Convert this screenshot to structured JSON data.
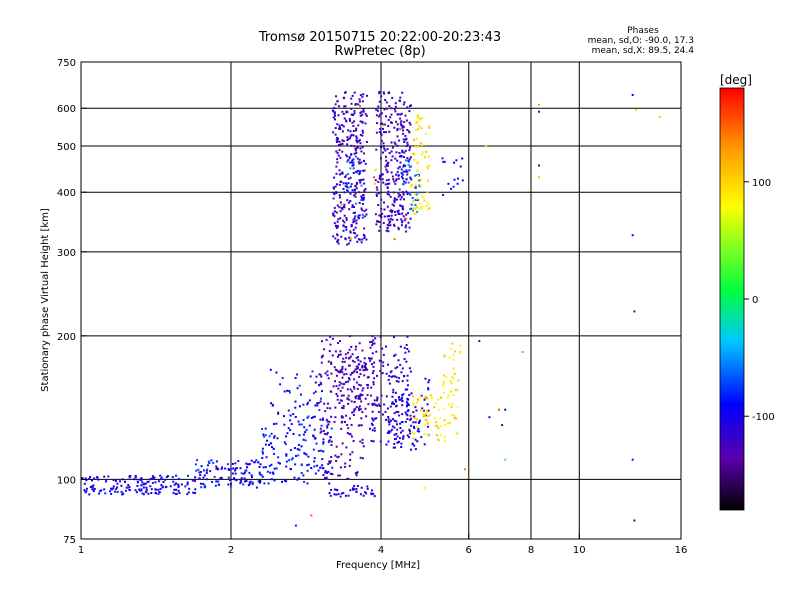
{
  "chart_data": {
    "type": "scatter",
    "title": "Tromsø 20150715 20:22:00-20:23:43",
    "subtitle": "RwPretec (8p)",
    "xlabel": "Frequency [MHz]",
    "ylabel": "Stationary phase Virtual Height [km]",
    "x_scale": "log",
    "y_scale": "log",
    "xlim": [
      1,
      16
    ],
    "ylim": [
      75,
      750
    ],
    "grid": true,
    "x_ticks": [
      "1",
      "2",
      "4",
      "6",
      "8",
      "10",
      "16"
    ],
    "y_ticks": [
      "75",
      "100",
      "200",
      "300",
      "400",
      "500",
      "600",
      "750"
    ],
    "x_grid": [
      2,
      4,
      6,
      8,
      10
    ],
    "y_grid": [
      100,
      200,
      300,
      400,
      500,
      600
    ],
    "colorbar": {
      "label": "[deg]",
      "range": [
        -180,
        180
      ],
      "ticks": [
        "100",
        "0",
        "-100"
      ],
      "tick_values": [
        100,
        0,
        -100
      ]
    },
    "annotation": {
      "title": "Phases",
      "line_o": "mean, sd,O: -90.0, 17.3",
      "line_x": "mean, sd,X:  89.5, 24.4"
    },
    "clusters": [
      {
        "f": [
          1.0,
          1.7
        ],
        "h": [
          93,
          102
        ],
        "phase": [
          -120,
          -80
        ],
        "n": 160
      },
      {
        "f": [
          1.7,
          2.3
        ],
        "h": [
          96,
          110
        ],
        "phase": [
          -120,
          -70
        ],
        "n": 110
      },
      {
        "f": [
          2.3,
          3.2
        ],
        "h": [
          98,
          130
        ],
        "phase": [
          -110,
          -70
        ],
        "n": 140
      },
      {
        "f": [
          2.4,
          3.1
        ],
        "h": [
          130,
          170
        ],
        "phase": [
          -110,
          -65
        ],
        "n": 60
      },
      {
        "f": [
          3.0,
          3.7
        ],
        "h": [
          100,
          200
        ],
        "phase": [
          -140,
          -115
        ],
        "n": 180
      },
      {
        "f": [
          3.3,
          3.9
        ],
        "h": [
          130,
          180
        ],
        "phase": [
          -140,
          -110
        ],
        "n": 110
      },
      {
        "f": [
          3.8,
          4.6
        ],
        "h": [
          120,
          200
        ],
        "phase": [
          -130,
          -100
        ],
        "n": 140
      },
      {
        "f": [
          4.1,
          5.0
        ],
        "h": [
          115,
          165
        ],
        "phase": [
          -115,
          -85
        ],
        "n": 90
      },
      {
        "f": [
          4.6,
          5.7
        ],
        "h": [
          120,
          150
        ],
        "phase": [
          70,
          120
        ],
        "n": 70
      },
      {
        "f": [
          5.3,
          5.8
        ],
        "h": [
          150,
          195
        ],
        "phase": [
          70,
          110
        ],
        "n": 30
      },
      {
        "f": [
          3.1,
          3.9
        ],
        "h": [
          92,
          97
        ],
        "phase": [
          -120,
          -90
        ],
        "n": 35
      },
      {
        "f": [
          3.2,
          3.75
        ],
        "h": [
          310,
          650
        ],
        "phase": [
          -135,
          -105
        ],
        "n": 320
      },
      {
        "f": [
          3.4,
          3.7
        ],
        "h": [
          330,
          480
        ],
        "phase": [
          -90,
          -50
        ],
        "n": 30
      },
      {
        "f": [
          3.9,
          4.6
        ],
        "h": [
          330,
          650
        ],
        "phase": [
          -135,
          -105
        ],
        "n": 300
      },
      {
        "f": [
          4.3,
          4.8
        ],
        "h": [
          360,
          470
        ],
        "phase": [
          -90,
          -50
        ],
        "n": 40
      },
      {
        "f": [
          4.6,
          5.0
        ],
        "h": [
          360,
          580
        ],
        "phase": [
          70,
          110
        ],
        "n": 70
      },
      {
        "f": [
          5.3,
          5.9
        ],
        "h": [
          390,
          480
        ],
        "phase": [
          -110,
          -80
        ],
        "n": 15
      },
      {
        "f": [
          3.3,
          4.5
        ],
        "h": [
          300,
          640
        ],
        "phase": [
          100,
          160
        ],
        "n": 10
      }
    ],
    "sparse_points": [
      {
        "f": 6.3,
        "h": 195,
        "phase": -120
      },
      {
        "f": 6.6,
        "h": 135,
        "phase": -110
      },
      {
        "f": 6.9,
        "h": 140,
        "phase": 150
      },
      {
        "f": 7.1,
        "h": 140,
        "phase": -95
      },
      {
        "f": 7.1,
        "h": 110,
        "phase": 20
      },
      {
        "f": 7.0,
        "h": 130,
        "phase": -150
      },
      {
        "f": 7.7,
        "h": 185,
        "phase": 130
      },
      {
        "f": 6.5,
        "h": 500,
        "phase": 95
      },
      {
        "f": 8.3,
        "h": 610,
        "phase": 120
      },
      {
        "f": 8.3,
        "h": 590,
        "phase": -120
      },
      {
        "f": 8.3,
        "h": 455,
        "phase": -140
      },
      {
        "f": 8.3,
        "h": 430,
        "phase": 110
      },
      {
        "f": 12.8,
        "h": 640,
        "phase": -90
      },
      {
        "f": 13.0,
        "h": 595,
        "phase": 100
      },
      {
        "f": 14.5,
        "h": 575,
        "phase": 110
      },
      {
        "f": 12.8,
        "h": 325,
        "phase": -100
      },
      {
        "f": 12.9,
        "h": 225,
        "phase": -130
      },
      {
        "f": 12.8,
        "h": 110,
        "phase": -120
      },
      {
        "f": 12.9,
        "h": 82,
        "phase": -150
      },
      {
        "f": 2.7,
        "h": 80,
        "phase": -80
      },
      {
        "f": 2.9,
        "h": 84,
        "phase": 150
      },
      {
        "f": 4.9,
        "h": 96,
        "phase": 80
      },
      {
        "f": 5.9,
        "h": 105,
        "phase": 140
      }
    ]
  }
}
